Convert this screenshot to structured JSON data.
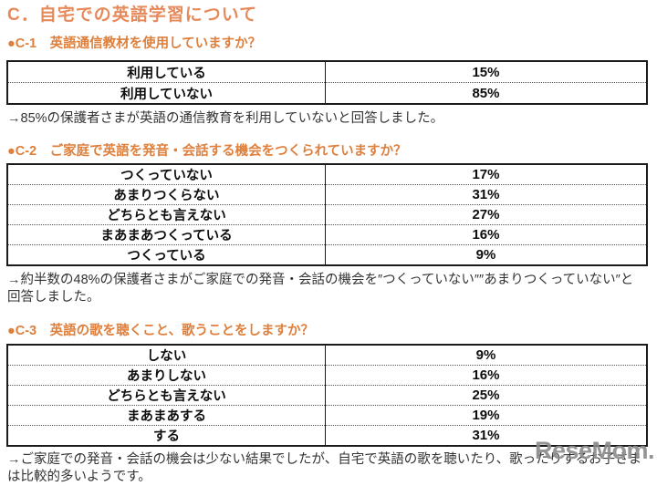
{
  "page": {
    "title": "C．自宅での英語学習について",
    "watermark": "ReseMom."
  },
  "colors": {
    "title_orange": "#E6895B",
    "heading_orange": "#DE7F3C",
    "body_text": "#333333",
    "table_text": "#0D0D0D",
    "watermark_gray": "#8D8D8D"
  },
  "sections": [
    {
      "heading": "●C-1　英語通信教材を使用していますか？",
      "rows": [
        {
          "label": "利用している",
          "value": "15%"
        },
        {
          "label": "利用していない",
          "value": "85%"
        }
      ],
      "note": "→85%の保護者さまが英語の通信教育を利用していないと回答しました。"
    },
    {
      "heading": "●C-2　ご家庭で英語を発音・会話する機会をつくられていますか？",
      "rows": [
        {
          "label": "つくっていない",
          "value": "17%"
        },
        {
          "label": "あまりつくらない",
          "value": "31%"
        },
        {
          "label": "どちらとも言えない",
          "value": "27%"
        },
        {
          "label": "まあまあつくっている",
          "value": "16%"
        },
        {
          "label": "つくっている",
          "value": "9%"
        }
      ],
      "note": "→約半数の48%の保護者さまがご家庭での発音・会話の機会を″つくっていない″″あまりつくっていない″と回答しました。"
    },
    {
      "heading": "●C-3　英語の歌を聴くこと、歌うことをしますか？",
      "rows": [
        {
          "label": "しない",
          "value": "9%"
        },
        {
          "label": "あまりしない",
          "value": "16%"
        },
        {
          "label": "どちらとも言えない",
          "value": "25%"
        },
        {
          "label": "まあまあする",
          "value": "19%"
        },
        {
          "label": "する",
          "value": "31%"
        }
      ],
      "note": "→ご家庭での発音・会話の機会は少ない結果でしたが、自宅で英語の歌を聴いたり、歌ったりするお子さまは比較的多いようです。"
    }
  ]
}
